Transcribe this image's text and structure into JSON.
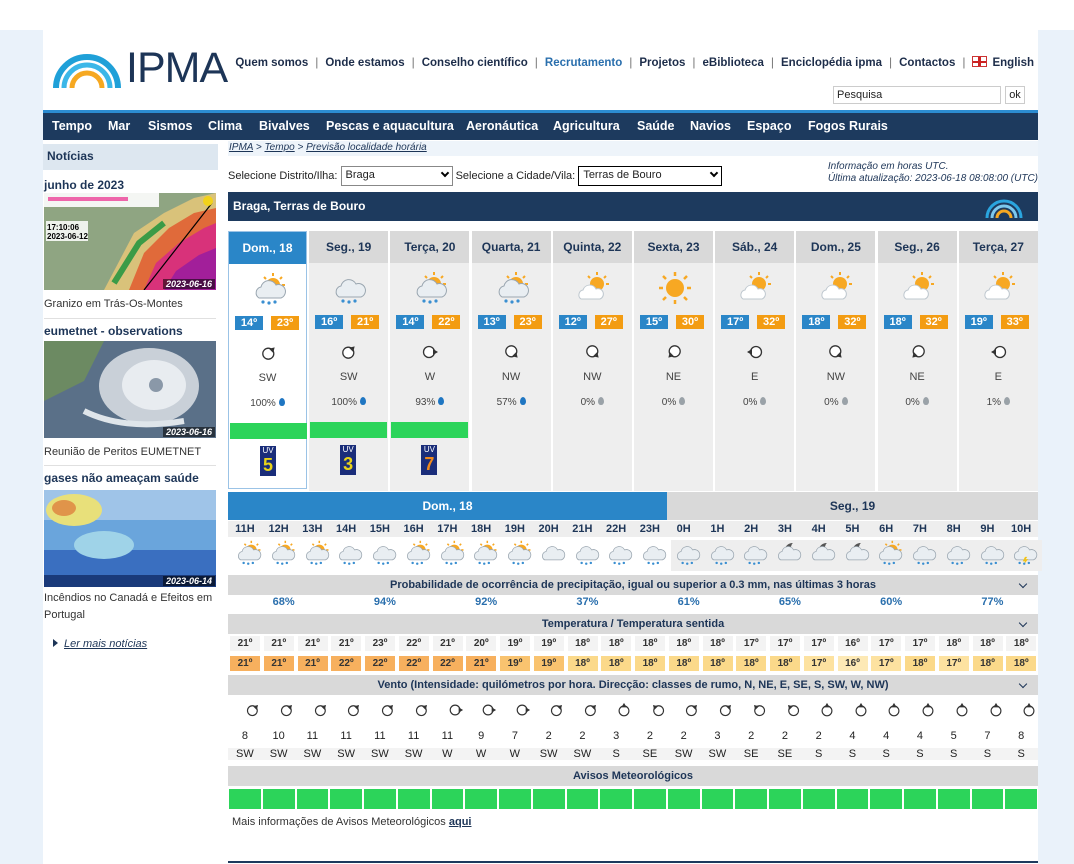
{
  "logo": {
    "text": "IPMA"
  },
  "toplinks": [
    {
      "label": "Quem somos",
      "blue": false
    },
    {
      "label": "Onde estamos",
      "blue": false
    },
    {
      "label": "Conselho científico",
      "blue": false
    },
    {
      "label": "Recrutamento",
      "blue": true
    },
    {
      "label": "Projetos",
      "blue": false
    },
    {
      "label": "eBiblioteca",
      "blue": false
    },
    {
      "label": "Enciclopédia ipma",
      "blue": false
    },
    {
      "label": "Contactos",
      "blue": false
    }
  ],
  "language": "English",
  "search": {
    "value": "Pesquisa",
    "button": "ok"
  },
  "nav": [
    "Tempo",
    "Mar",
    "Sismos",
    "Clima",
    "Bivalves",
    "Pescas e aquacultura",
    "Aeronáutica",
    "Agricultura",
    "Saúde",
    "Navios",
    "Espaço",
    "Fogos Rurais"
  ],
  "sidebar": {
    "title": "Notícias",
    "news": [
      {
        "subtitle": "junho de 2023",
        "date": "2023-06-16",
        "caption": "Granizo em Trás-Os-Montes",
        "overlay_time": "17:10:06",
        "overlay_date": "2023-06-12"
      },
      {
        "subtitle": "eumetnet - observations",
        "date": "2023-06-16",
        "caption": "Reunião de Peritos EUMETNET"
      },
      {
        "subtitle": "gases não ameaçam saúde",
        "date": "2023-06-14",
        "caption": "Incêndios no Canadá e Efeitos em Portugal"
      }
    ],
    "more": "Ler mais notícias"
  },
  "breadcrumb": {
    "c1": "IPMA",
    "c2": "Tempo",
    "c3": "Previsão localidade horária"
  },
  "selectors": {
    "district_label": "Selecione Distrito/Ilha:",
    "district_value": "Braga",
    "city_label": "Selecione a Cidade/Vila:",
    "city_value": "Terras de Bouro"
  },
  "info": {
    "line1": "Informação em horas UTC.",
    "line2": "Última atualização: 2023-06-18 08:08:00 (UTC)"
  },
  "location_title": "Braga, Terras de Bouro",
  "days": [
    {
      "name": "Dom., 18",
      "icon": "rain",
      "tmin": "14º",
      "tmax": "23º",
      "dir": "SW",
      "prob": "100%",
      "uv": "5",
      "uvcolor": "#e8d31a"
    },
    {
      "name": "Seg., 19",
      "icon": "cloud-rain",
      "tmin": "16º",
      "tmax": "21º",
      "dir": "SW",
      "prob": "100%",
      "uv": "3",
      "uvcolor": "#e8d31a"
    },
    {
      "name": "Terça, 20",
      "icon": "rain",
      "tmin": "14º",
      "tmax": "22º",
      "dir": "W",
      "prob": "93%",
      "uv": "7",
      "uvcolor": "#f08a1c"
    },
    {
      "name": "Quarta, 21",
      "icon": "rain",
      "tmin": "13º",
      "tmax": "23º",
      "dir": "NW",
      "prob": "57%"
    },
    {
      "name": "Quinta, 22",
      "icon": "partly",
      "tmin": "12º",
      "tmax": "27º",
      "dir": "NW",
      "prob": "0%"
    },
    {
      "name": "Sexta, 23",
      "icon": "sun",
      "tmin": "15º",
      "tmax": "30º",
      "dir": "NE",
      "prob": "0%"
    },
    {
      "name": "Sáb., 24",
      "icon": "partly",
      "tmin": "17º",
      "tmax": "32º",
      "dir": "E",
      "prob": "0%"
    },
    {
      "name": "Dom., 25",
      "icon": "partly",
      "tmin": "18º",
      "tmax": "32º",
      "dir": "NW",
      "prob": "0%"
    },
    {
      "name": "Seg., 26",
      "icon": "partly",
      "tmin": "18º",
      "tmax": "32º",
      "dir": "NE",
      "prob": "0%"
    },
    {
      "name": "Terça, 27",
      "icon": "partly",
      "tmin": "19º",
      "tmax": "33º",
      "dir": "E",
      "prob": "1%"
    }
  ],
  "hourly": {
    "day1": "Dom., 18",
    "day2": "Seg., 19",
    "hours": [
      "11H",
      "12H",
      "13H",
      "14H",
      "15H",
      "16H",
      "17H",
      "18H",
      "19H",
      "20H",
      "21H",
      "22H",
      "23H",
      "0H",
      "1H",
      "2H",
      "3H",
      "4H",
      "5H",
      "6H",
      "7H",
      "8H",
      "9H",
      "10H"
    ],
    "icons": [
      "rain",
      "rain",
      "rain",
      "rain-cloud",
      "rain-cloud",
      "rain",
      "rain",
      "rain",
      "rain",
      "cloud",
      "rain-cloud",
      "rain-cloud",
      "rain-cloud",
      "rain-cloud",
      "rain-cloud",
      "rain-cloud",
      "moon",
      "moon",
      "moon",
      "rain",
      "rain-cloud",
      "rain-cloud",
      "rain-cloud",
      "storm"
    ],
    "precip_title": "Probabilidade de ocorrência de precipitação, igual ou superior a 0.3 mm, nas últimas 3 horas",
    "precip": [
      "68%",
      "94%",
      "92%",
      "37%",
      "61%",
      "65%",
      "60%",
      "77%"
    ],
    "temp_title": "Temperatura / Temperatura sentida",
    "temp": [
      "21º",
      "21º",
      "21º",
      "21º",
      "23º",
      "22º",
      "21º",
      "20º",
      "19º",
      "19º",
      "18º",
      "18º",
      "18º",
      "18º",
      "18º",
      "17º",
      "17º",
      "17º",
      "16º",
      "17º",
      "17º",
      "18º",
      "18º",
      "18º"
    ],
    "feels": [
      "21º",
      "21º",
      "21º",
      "22º",
      "22º",
      "22º",
      "22º",
      "21º",
      "19º",
      "19º",
      "18º",
      "18º",
      "18º",
      "18º",
      "18º",
      "18º",
      "18º",
      "17º",
      "16º",
      "17º",
      "18º",
      "17º",
      "18º",
      "18º"
    ],
    "wind_title": "Vento (Intensidade: quilómetros por hora. Direcção: classes de rumo, N, NE, E, SE, S, SW, W, NW)",
    "wind_speed": [
      "8",
      "10",
      "11",
      "11",
      "11",
      "11",
      "11",
      "9",
      "7",
      "2",
      "2",
      "3",
      "2",
      "2",
      "3",
      "2",
      "2",
      "2",
      "4",
      "4",
      "4",
      "5",
      "7",
      "8"
    ],
    "wind_dir": [
      "SW",
      "SW",
      "SW",
      "SW",
      "SW",
      "SW",
      "W",
      "W",
      "W",
      "SW",
      "SW",
      "S",
      "SE",
      "SW",
      "SW",
      "SE",
      "SE",
      "S",
      "S",
      "S",
      "S",
      "S",
      "S",
      "S"
    ],
    "warn_title": "Avisos Meteorológicos"
  },
  "more_info": {
    "text": "Mais informações de Avisos Meteorológicos",
    "link": "aqui"
  }
}
